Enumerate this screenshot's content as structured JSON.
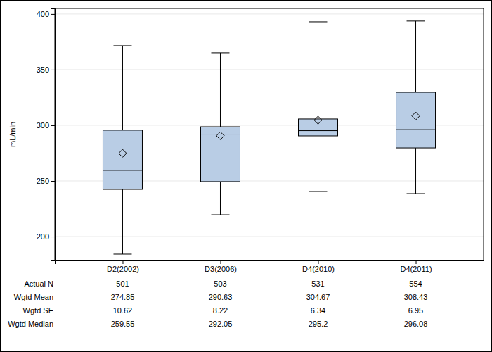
{
  "chart_data": {
    "type": "box",
    "y_label": "mL/min",
    "categories": [
      "D2(2002)",
      "D3(2006)",
      "D4(2010)",
      "D4(2011)"
    ],
    "boxes": [
      {
        "whisker_low": 184.2,
        "q1": 242.4,
        "median": 259.55,
        "q3": 295.6,
        "whisker_high": 371.5,
        "mean": 274.85
      },
      {
        "whisker_low": 219.6,
        "q1": 249.4,
        "median": 292.05,
        "q3": 298.7,
        "whisker_high": 365.2,
        "mean": 290.63
      },
      {
        "whisker_low": 240.5,
        "q1": 290.5,
        "median": 295.2,
        "q3": 305.7,
        "whisker_high": 393.0,
        "mean": 304.67
      },
      {
        "whisker_low": 238.6,
        "q1": 279.7,
        "median": 296.08,
        "q3": 329.7,
        "whisker_high": 393.7,
        "mean": 308.43
      }
    ],
    "color": "#b9cde5",
    "ylim": [
      178.5,
      405
    ],
    "yticks": [
      200,
      250,
      300,
      350,
      400
    ],
    "grid": true,
    "table": {
      "row_labels": [
        "Actual N",
        "Wgtd Mean",
        "Wgtd SE",
        "Wgtd Median"
      ],
      "rows": [
        [
          501,
          503,
          531,
          554
        ],
        [
          274.85,
          290.63,
          304.67,
          308.43
        ],
        [
          10.62,
          8.22,
          6.34,
          6.95
        ],
        [
          259.55,
          292.05,
          295.2,
          296.08
        ]
      ]
    }
  }
}
